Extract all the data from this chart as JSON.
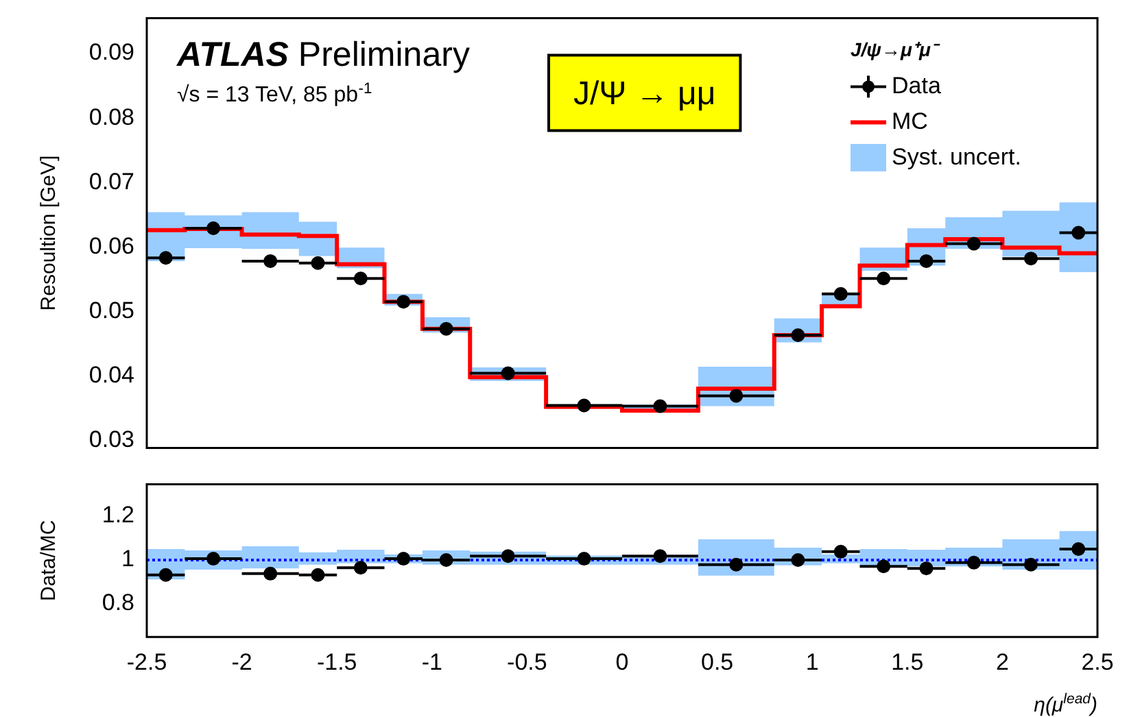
{
  "chart_data": [
    {
      "type": "step",
      "ylabel": "Resoultion [GeV]",
      "legend_title": "J/ψ→μ⁺μ⁻",
      "legend": "top right",
      "tick_labels": "y",
      "annotations": [
        "ATLAS Preliminary",
        "√s = 13 TeV, 85 pb$^{-1}$",
        "J/Ψ → μμ",
        "Syst. uncert."
      ],
      "x": [
        -2.4,
        -2.15,
        -1.85,
        -1.6,
        -1.375,
        -1.15,
        -0.925,
        -0.6,
        -0.2,
        0.2,
        0.6,
        0.925,
        1.15,
        1.375,
        1.6,
        1.85,
        2.15,
        2.4
      ],
      "xlim": [
        -2.5,
        2.5
      ],
      "xticks": [
        -2.5,
        -2,
        -1.5,
        -1,
        -0.5,
        0,
        0.5,
        1,
        1.5,
        2,
        2.5
      ],
      "ylim": [
        0.0288,
        0.0955
      ],
      "yticks": [
        0.03,
        0.04,
        0.05,
        0.06,
        0.07,
        0.08,
        0.09
      ],
      "series": [
        {
          "name": "Data",
          "type": "scatter",
          "color": "#000000",
          "marker": "circle",
          "values": [
            0.0583,
            0.0629,
            0.0578,
            0.0575,
            0.0551,
            0.0515,
            0.0473,
            0.0404,
            0.0354,
            0.0353,
            0.0369,
            0.0463,
            0.0527,
            0.0551,
            0.0578,
            0.0605,
            0.0582,
            0.0622
          ],
          "errors": [
            0.0009,
            null,
            null,
            null,
            null,
            null,
            null,
            null,
            null,
            null,
            null,
            null,
            null,
            null,
            null,
            null,
            null,
            0.001
          ],
          "xerrors": [
            0.1,
            0.15,
            0.15,
            0.1,
            0.125,
            0.1,
            0.125,
            0.2,
            0.2,
            0.2,
            0.2,
            0.125,
            0.1,
            0.125,
            0.1,
            0.15,
            0.15,
            0.1
          ]
        },
        {
          "name": "MC",
          "color": "#ff0000",
          "x": [
            -2.5,
            -2.3,
            -2.0,
            -1.7,
            -1.5,
            -1.25,
            -1.05,
            -0.8,
            -0.4,
            0,
            0.4,
            0.8,
            1.05,
            1.25,
            1.5,
            1.7,
            2.0,
            2.3,
            2.5
          ],
          "values": [
            0.0626,
            0.0628,
            0.0619,
            0.0617,
            0.0573,
            0.0515,
            0.0473,
            0.0398,
            0.0352,
            0.0346,
            0.038,
            0.0463,
            0.0508,
            0.0571,
            0.0603,
            0.0612,
            0.0599,
            0.059,
            0.059
          ],
          "lower": [
            0.0578,
            0.0598,
            0.0597,
            0.0586,
            0.0567,
            0.0509,
            0.0467,
            0.0392,
            0.0349,
            0.0345,
            0.0353,
            0.0452,
            0.0509,
            0.0563,
            0.0571,
            0.0597,
            0.0585,
            0.0561,
            0.0561
          ],
          "upper": [
            0.0654,
            0.0649,
            0.0654,
            0.0639,
            0.0599,
            0.0527,
            0.0491,
            0.0413,
            0.0356,
            0.0355,
            0.0414,
            0.0489,
            0.0528,
            0.0599,
            0.0629,
            0.0646,
            0.0656,
            0.0669,
            0.0669
          ]
        }
      ]
    },
    {
      "type": "scatter",
      "ylabel": "Data/MC",
      "xlabel": "η(μ$^{lead}$)",
      "x": [
        -2.4,
        -2.15,
        -1.85,
        -1.6,
        -1.375,
        -1.15,
        -0.925,
        -0.6,
        -0.2,
        0.2,
        0.6,
        0.925,
        1.15,
        1.375,
        1.6,
        1.85,
        2.15,
        2.4
      ],
      "xlim": [
        -2.5,
        2.5
      ],
      "xticks": [
        -2.5,
        -2,
        -1.5,
        -1,
        -0.5,
        0,
        0.5,
        1,
        1.5,
        2,
        2.5
      ],
      "ylim": [
        0.65,
        1.345
      ],
      "yticks": [
        0.8,
        1,
        1.2
      ],
      "series": [
        {
          "type": "step",
          "color": "#0000ff",
          "line_style": "dotted",
          "x": [
            -2.5,
            -2.3,
            -2.0,
            -1.7,
            -1.5,
            -1.25,
            -1.05,
            -0.8,
            -0.4,
            0,
            0.4,
            0.8,
            1.05,
            1.25,
            1.5,
            1.7,
            2.0,
            2.3,
            2.5
          ],
          "values": [
            1,
            1,
            1,
            1,
            1,
            1,
            1,
            1,
            1,
            1,
            1,
            1,
            1,
            1,
            1,
            1,
            1,
            1,
            1
          ],
          "lower": [
            0.912,
            0.956,
            0.962,
            0.979,
            0.985,
            0.985,
            0.979,
            0.979,
            0.979,
            0.979,
            0.929,
            0.976,
            0.985,
            0.976,
            0.971,
            0.971,
            0.956,
            0.956,
            0.956
          ],
          "upper": [
            1.05,
            1.044,
            1.062,
            1.035,
            1.047,
            1.026,
            1.044,
            1.038,
            1.02,
            1.02,
            1.094,
            1.056,
            1.026,
            1.05,
            1.047,
            1.056,
            1.094,
            1.132,
            1.132
          ]
        },
        {
          "color": "#000000",
          "marker": "circle",
          "values": [
            0.932,
            1.006,
            0.938,
            0.932,
            0.965,
            1.006,
            1.0,
            1.018,
            1.006,
            1.018,
            0.979,
            1.0,
            1.038,
            0.971,
            0.962,
            0.988,
            0.979,
            1.05
          ],
          "xerrors": [
            0.1,
            0.15,
            0.15,
            0.1,
            0.125,
            0.1,
            0.125,
            0.2,
            0.2,
            0.2,
            0.2,
            0.125,
            0.1,
            0.125,
            0.1,
            0.15,
            0.15,
            0.1
          ]
        }
      ]
    }
  ]
}
